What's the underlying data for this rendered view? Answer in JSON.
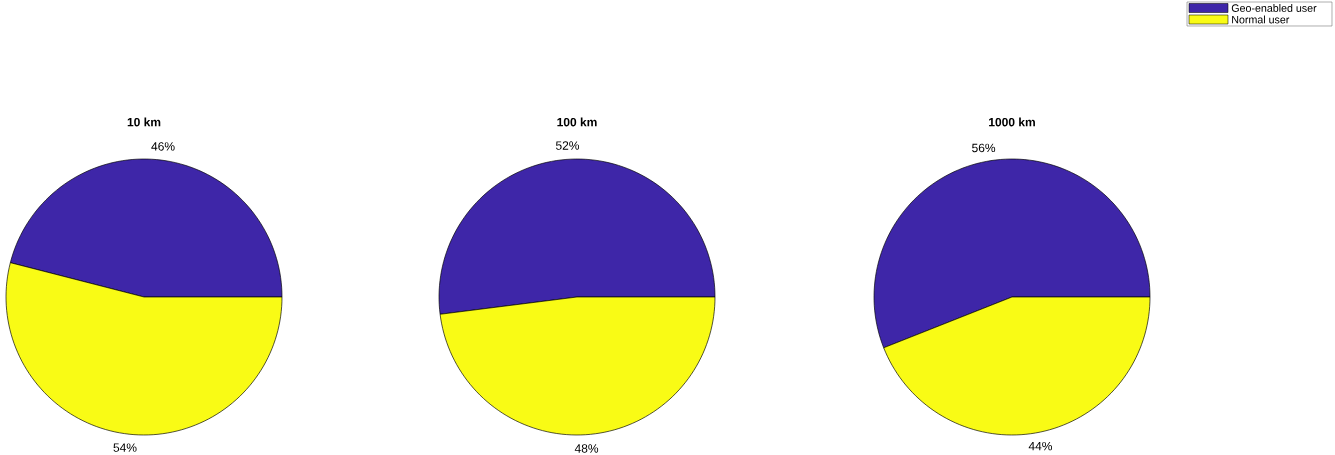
{
  "chart_data": [
    {
      "type": "pie",
      "title": "10 km",
      "categories": [
        null,
        null
      ],
      "values": [
        46,
        54
      ],
      "value_labels": [
        "46%",
        "54%"
      ],
      "colors": [
        "#3e26a8",
        "#f9fb15"
      ]
    },
    {
      "type": "pie",
      "title": "100 km",
      "categories": [
        null,
        null
      ],
      "values": [
        52,
        48
      ],
      "value_labels": [
        "52%",
        "48%"
      ],
      "colors": [
        "#3e26a8",
        "#f9fb15"
      ]
    },
    {
      "type": "pie",
      "title": "1000 km",
      "categories": [
        "Geo-enabled user",
        "Normal user"
      ],
      "values": [
        56,
        44
      ],
      "value_labels": [
        "56%",
        "44%"
      ],
      "colors": [
        "#3e26a8",
        "#f9fb15"
      ],
      "legend": "top right"
    }
  ]
}
